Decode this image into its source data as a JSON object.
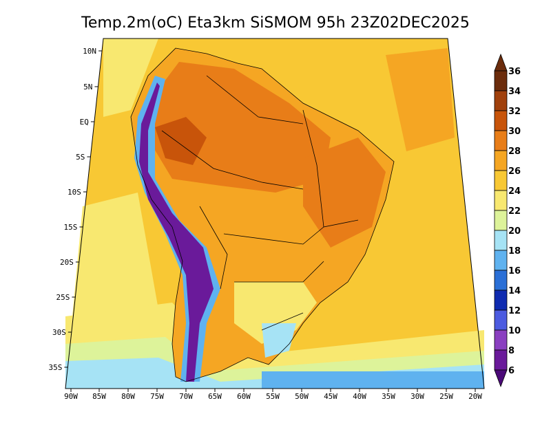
{
  "title": "Temp.2m(oC) Eta3km SiSMOM 95h 23Z02DEC2025",
  "lat_labels": [
    "10N",
    "5N",
    "EQ",
    "5S",
    "10S",
    "15S",
    "20S",
    "25S",
    "30S",
    "35S"
  ],
  "lon_labels": [
    "90W",
    "85W",
    "80W",
    "75W",
    "70W",
    "65W",
    "60W",
    "55W",
    "50W",
    "45W",
    "40W",
    "35W",
    "30W",
    "25W",
    "20W"
  ],
  "colorbar": {
    "labels": [
      "36",
      "34",
      "32",
      "30",
      "28",
      "26",
      "24",
      "22",
      "20",
      "18",
      "16",
      "14",
      "12",
      "10",
      "8",
      "6"
    ],
    "colors": [
      "#6b2c0c",
      "#a0400c",
      "#c8540a",
      "#e87d18",
      "#f5a623",
      "#f8c834",
      "#f8e870",
      "#ddf39a",
      "#a6e3f5",
      "#5fb2ef",
      "#2a6fd6",
      "#0f2bb0",
      "#4c5be0",
      "#8a3fc0",
      "#6a1a9a",
      "#4b0a78"
    ]
  },
  "palette": {
    "ocean_warm": "#f8c834",
    "ocean_mid": "#f8e870",
    "ocean_cool": "#ddf39a",
    "ocean_cold": "#a6e3f5",
    "land_hot": "#e87d18",
    "land_veryhot": "#c8540a",
    "land_warm": "#f5a623",
    "andes_cold": "#6a1a9a",
    "andes_cool": "#2a6fd6",
    "border": "#000000"
  }
}
